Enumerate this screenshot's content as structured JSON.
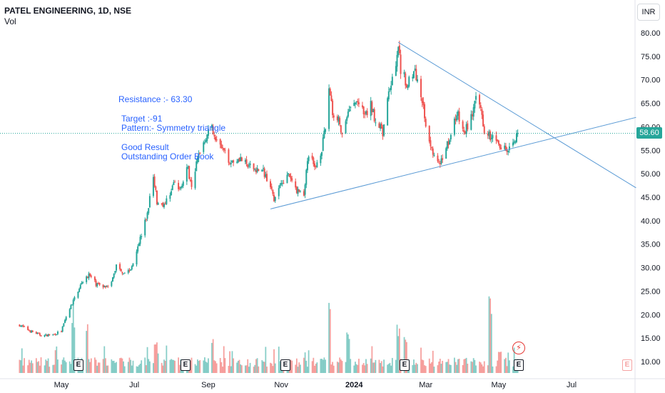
{
  "legend": {
    "title": "PATEL ENGINEERING, 1D, NSE",
    "volume_label": "Vol"
  },
  "currency": "INR",
  "last_price": "58.60",
  "annotations": {
    "resistance": "Resistance :- 63.30",
    "target": "Target :-91",
    "pattern": "Pattern:- Symmetry triangle",
    "result": "Good Result",
    "order_book": "Outstanding Order Book"
  },
  "earnings_marker": "E",
  "dividend_icon": "lightning-icon",
  "colors": {
    "up": "#26a69a",
    "down": "#ef5350",
    "trendline": "#5b9bd5",
    "annotation": "#2962ff"
  },
  "chart_data": {
    "type": "candlestick",
    "symbol": "PATEL ENGINEERING",
    "interval": "1D",
    "exchange": "NSE",
    "ylim": [
      8,
      82
    ],
    "y_ticks": [
      "80.00",
      "75.00",
      "70.00",
      "65.00",
      "60.00",
      "55.00",
      "50.00",
      "45.00",
      "40.00",
      "35.00",
      "30.00",
      "25.00",
      "20.00",
      "15.00",
      "10.00"
    ],
    "x_ticks": [
      "May",
      "Jul",
      "Sep",
      "Nov",
      "2024",
      "Mar",
      "May",
      "Jul"
    ],
    "x_tick_dates": [
      "2023-05-01",
      "2023-07-01",
      "2023-09-01",
      "2023-11-01",
      "2024-01-01",
      "2024-03-01",
      "2024-05-01",
      "2024-07-01"
    ],
    "date_range": [
      "2023-03-27",
      "2024-05-17"
    ],
    "close_anchors": [
      [
        "2023-03-27",
        17.8
      ],
      [
        "2023-04-05",
        16.5
      ],
      [
        "2023-04-15",
        15.5
      ],
      [
        "2023-04-25",
        15.8
      ],
      [
        "2023-05-01",
        16.5
      ],
      [
        "2023-05-05",
        19.5
      ],
      [
        "2023-05-12",
        23.5
      ],
      [
        "2023-05-18",
        27.0
      ],
      [
        "2023-05-24",
        28.5
      ],
      [
        "2023-05-30",
        26.5
      ],
      [
        "2023-06-06",
        26.0
      ],
      [
        "2023-06-12",
        26.8
      ],
      [
        "2023-06-16",
        30.5
      ],
      [
        "2023-06-22",
        29.0
      ],
      [
        "2023-06-28",
        29.5
      ],
      [
        "2023-07-03",
        34.0
      ],
      [
        "2023-07-07",
        37.0
      ],
      [
        "2023-07-12",
        41.5
      ],
      [
        "2023-07-17",
        49.5
      ],
      [
        "2023-07-20",
        44.0
      ],
      [
        "2023-07-27",
        43.5
      ],
      [
        "2023-08-03",
        48.0
      ],
      [
        "2023-08-08",
        46.5
      ],
      [
        "2023-08-14",
        51.5
      ],
      [
        "2023-08-18",
        48.0
      ],
      [
        "2023-08-25",
        55.0
      ],
      [
        "2023-08-31",
        58.5
      ],
      [
        "2023-09-04",
        60.0
      ],
      [
        "2023-09-08",
        57.0
      ],
      [
        "2023-09-14",
        54.5
      ],
      [
        "2023-09-20",
        52.5
      ],
      [
        "2023-09-27",
        53.5
      ],
      [
        "2023-10-04",
        51.5
      ],
      [
        "2023-10-11",
        51.0
      ],
      [
        "2023-10-17",
        50.5
      ],
      [
        "2023-10-24",
        47.5
      ],
      [
        "2023-10-26",
        43.5
      ],
      [
        "2023-10-31",
        48.0
      ],
      [
        "2023-11-07",
        49.5
      ],
      [
        "2023-11-14",
        46.5
      ],
      [
        "2023-11-20",
        46.0
      ],
      [
        "2023-11-24",
        54.5
      ],
      [
        "2023-11-29",
        51.0
      ],
      [
        "2023-12-05",
        55.5
      ],
      [
        "2023-12-08",
        59.5
      ],
      [
        "2023-12-11",
        68.5
      ],
      [
        "2023-12-14",
        63.0
      ],
      [
        "2023-12-19",
        62.0
      ],
      [
        "2023-12-22",
        57.5
      ],
      [
        "2023-12-28",
        63.5
      ],
      [
        "2024-01-04",
        65.5
      ],
      [
        "2024-01-10",
        62.0
      ],
      [
        "2024-01-15",
        64.5
      ],
      [
        "2024-01-19",
        61.5
      ],
      [
        "2024-01-25",
        58.5
      ],
      [
        "2024-01-31",
        68.5
      ],
      [
        "2024-02-05",
        73.5
      ],
      [
        "2024-02-07",
        77.5
      ],
      [
        "2024-02-09",
        72.0
      ],
      [
        "2024-02-14",
        69.5
      ],
      [
        "2024-02-20",
        72.0
      ],
      [
        "2024-02-23",
        70.0
      ],
      [
        "2024-02-27",
        66.0
      ],
      [
        "2024-02-29",
        61.5
      ],
      [
        "2024-03-04",
        57.5
      ],
      [
        "2024-03-08",
        53.5
      ],
      [
        "2024-03-13",
        51.5
      ],
      [
        "2024-03-18",
        56.0
      ],
      [
        "2024-03-22",
        58.0
      ],
      [
        "2024-03-27",
        63.0
      ],
      [
        "2024-04-02",
        58.5
      ],
      [
        "2024-04-08",
        62.0
      ],
      [
        "2024-04-12",
        65.5
      ],
      [
        "2024-04-16",
        64.0
      ],
      [
        "2024-04-19",
        59.5
      ],
      [
        "2024-04-23",
        58.5
      ],
      [
        "2024-04-29",
        56.5
      ],
      [
        "2024-05-03",
        55.5
      ],
      [
        "2024-05-08",
        55.0
      ],
      [
        "2024-05-13",
        56.5
      ],
      [
        "2024-05-17",
        58.6
      ]
    ],
    "trendlines": [
      {
        "name": "upper",
        "from": [
          "2024-02-07",
          78.0
        ],
        "to": [
          "2024-08-24",
          47.0
        ]
      },
      {
        "name": "lower",
        "from": [
          "2023-10-23",
          42.5
        ],
        "to": [
          "2024-08-24",
          62.0
        ]
      }
    ],
    "volume_spikes": [
      [
        "2023-05-11",
        0.65
      ],
      [
        "2023-05-22",
        0.55
      ],
      [
        "2023-07-19",
        0.35
      ],
      [
        "2023-09-04",
        0.45
      ],
      [
        "2023-12-11",
        0.85
      ],
      [
        "2023-12-27",
        0.45
      ],
      [
        "2024-02-07",
        0.55
      ],
      [
        "2024-02-13",
        0.4
      ],
      [
        "2024-04-24",
        0.85
      ],
      [
        "2024-05-02",
        0.3
      ]
    ],
    "earnings_dates": [
      "2023-05-20",
      "2023-08-13",
      "2023-11-10",
      "2024-02-10",
      "2024-05-25"
    ],
    "dividend_date": "2024-05-25",
    "grid": false,
    "last_price": 58.6
  }
}
